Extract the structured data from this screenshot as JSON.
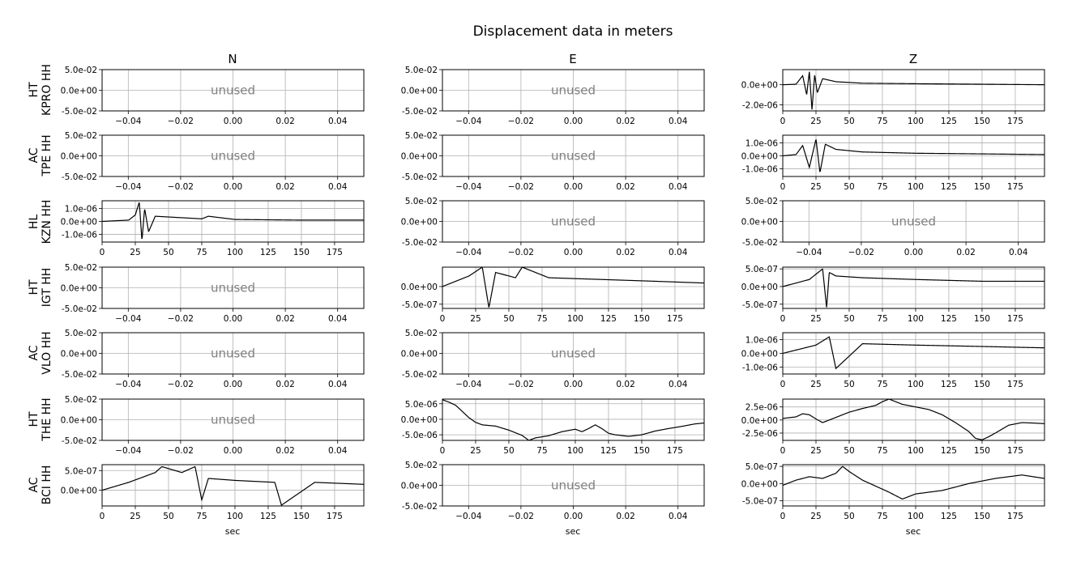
{
  "title": "Displacement data in meters",
  "columns": [
    "N",
    "E",
    "Z"
  ],
  "rows": [
    {
      "network": "HT",
      "station": "KPRO HH"
    },
    {
      "network": "AC",
      "station": "TPE HH"
    },
    {
      "network": "HL",
      "station": "KZN HH"
    },
    {
      "network": "HT",
      "station": "IGT HH"
    },
    {
      "network": "AC",
      "station": "VLO HH"
    },
    {
      "network": "HT",
      "station": "THE HH"
    },
    {
      "network": "AC",
      "station": "BCI HH"
    }
  ],
  "xlabel": "sec",
  "unused_label": "unused",
  "colors": {
    "trace": "#000000",
    "grid": "#b0b0b0",
    "unused_text": "#808080"
  },
  "chart_data": {
    "type": "line",
    "grid": true,
    "unused_panel": {
      "xlim": [
        -0.05,
        0.05
      ],
      "xticks": [
        -0.04,
        -0.02,
        0.0,
        0.02,
        0.04
      ],
      "xtick_labels": [
        "−0.04",
        "−0.02",
        "0.00",
        "0.02",
        "0.04"
      ],
      "ylim": [
        -0.05,
        0.05
      ],
      "yticks": [
        0.05,
        0.0,
        -0.05
      ],
      "ytick_labels": [
        "5.0e-02",
        "0.0e+00",
        "-5.0e-02"
      ]
    },
    "time_axis": {
      "xlim": [
        0,
        197
      ],
      "xticks": [
        0,
        25,
        50,
        75,
        100,
        125,
        150,
        175
      ],
      "xtick_labels": [
        "0",
        "25",
        "50",
        "75",
        "100",
        "125",
        "150",
        "175"
      ]
    },
    "panels": [
      {
        "row": 0,
        "col": 0,
        "used": false
      },
      {
        "row": 0,
        "col": 1,
        "used": false
      },
      {
        "row": 0,
        "col": 2,
        "used": true,
        "ylim": [
          -2.6e-06,
          1.5e-06
        ],
        "yticks": [
          0.0,
          -2e-06
        ],
        "ytick_labels": [
          "0.0e+00",
          "-2.0e-06"
        ],
        "x": [
          0,
          10,
          15,
          18,
          20,
          22,
          24,
          26,
          30,
          40,
          60,
          100,
          150,
          197
        ],
        "y": [
          0,
          5e-08,
          9e-07,
          -1e-06,
          1.3e-06,
          -2.5e-06,
          1e-06,
          -8e-07,
          6e-07,
          3e-07,
          1.5e-07,
          1e-07,
          5e-08,
          0
        ]
      },
      {
        "row": 1,
        "col": 0,
        "used": false
      },
      {
        "row": 1,
        "col": 1,
        "used": false
      },
      {
        "row": 1,
        "col": 2,
        "used": true,
        "ylim": [
          -1.6e-06,
          1.6e-06
        ],
        "yticks": [
          1e-06,
          0.0,
          -1e-06
        ],
        "ytick_labels": [
          "1.0e-06",
          "0.0e+00",
          "-1.0e-06"
        ],
        "x": [
          0,
          10,
          15,
          20,
          25,
          28,
          32,
          40,
          60,
          100,
          150,
          197
        ],
        "y": [
          0,
          1e-07,
          8e-07,
          -9e-07,
          1.3e-06,
          -1.3e-06,
          9e-07,
          5e-07,
          3e-07,
          2e-07,
          1.5e-07,
          1e-07
        ]
      },
      {
        "row": 2,
        "col": 0,
        "used": true,
        "ylim": [
          -1.6e-06,
          1.6e-06
        ],
        "yticks": [
          1e-06,
          0.0,
          -1e-06
        ],
        "ytick_labels": [
          "1.0e-06",
          "0.0e+00",
          "-1.0e-06"
        ],
        "x": [
          0,
          20,
          25,
          28,
          30,
          32,
          35,
          40,
          75,
          80,
          100,
          150,
          197
        ],
        "y": [
          0,
          1e-07,
          5e-07,
          1.5e-06,
          -1.5e-06,
          1e-06,
          -8e-07,
          4e-07,
          2e-07,
          4e-07,
          1.5e-07,
          1e-07,
          1e-07
        ]
      },
      {
        "row": 2,
        "col": 1,
        "used": false
      },
      {
        "row": 2,
        "col": 2,
        "used": false
      },
      {
        "row": 3,
        "col": 0,
        "used": false
      },
      {
        "row": 3,
        "col": 1,
        "used": true,
        "ylim": [
          -6.2e-07,
          5.5e-07
        ],
        "yticks": [
          0.0,
          -5e-07
        ],
        "ytick_labels": [
          "0.0e+00",
          "-5.0e-07"
        ],
        "x": [
          0,
          10,
          20,
          30,
          35,
          40,
          55,
          60,
          80,
          120,
          160,
          197
        ],
        "y": [
          0,
          1.5e-07,
          3e-07,
          5.5e-07,
          -6e-07,
          4e-07,
          2.5e-07,
          5.5e-07,
          2.5e-07,
          2e-07,
          1.5e-07,
          1e-07
        ]
      },
      {
        "row": 3,
        "col": 2,
        "used": true,
        "ylim": [
          -6.2e-07,
          5.5e-07
        ],
        "yticks": [
          5e-07,
          0.0,
          -5e-07
        ],
        "ytick_labels": [
          "5.0e-07",
          "0.0e+00",
          "-5.0e-07"
        ],
        "x": [
          0,
          20,
          30,
          33,
          35,
          40,
          60,
          100,
          150,
          197
        ],
        "y": [
          0,
          2e-07,
          5e-07,
          -6e-07,
          4e-07,
          3e-07,
          2.5e-07,
          2e-07,
          1.5e-07,
          1.5e-07
        ]
      },
      {
        "row": 4,
        "col": 0,
        "used": false
      },
      {
        "row": 4,
        "col": 1,
        "used": false
      },
      {
        "row": 4,
        "col": 2,
        "used": true,
        "ylim": [
          -1.5e-06,
          1.5e-06
        ],
        "yticks": [
          1e-06,
          0.0,
          -1e-06
        ],
        "ytick_labels": [
          "1.0e-06",
          "0.0e+00",
          "-1.0e-06"
        ],
        "x": [
          0,
          25,
          35,
          40,
          60,
          100,
          150,
          197
        ],
        "y": [
          0,
          6e-07,
          1.2e-06,
          -1.1e-06,
          7e-07,
          6e-07,
          5e-07,
          4e-07
        ]
      },
      {
        "row": 5,
        "col": 0,
        "used": false
      },
      {
        "row": 5,
        "col": 1,
        "used": true,
        "ylim": [
          -6.8e-06,
          6.5e-06
        ],
        "yticks": [
          5e-06,
          0.0,
          -5e-06
        ],
        "ytick_labels": [
          "5.0e-06",
          "0.0e+00",
          "-5.0e-06"
        ],
        "x": [
          0,
          5,
          10,
          15,
          20,
          25,
          30,
          40,
          50,
          60,
          65,
          70,
          80,
          90,
          100,
          105,
          110,
          115,
          120,
          125,
          130,
          140,
          150,
          160,
          170,
          180,
          190,
          197
        ],
        "y": [
          6.3e-06,
          5.5e-06,
          4.5e-06,
          2.5e-06,
          5e-07,
          -1e-06,
          -1.8e-06,
          -2.2e-06,
          -3.5e-06,
          -5.2e-06,
          -6.8e-06,
          -6e-06,
          -5.3e-06,
          -4e-06,
          -3.2e-06,
          -4e-06,
          -3e-06,
          -1.8e-06,
          -3e-06,
          -4.5e-06,
          -5e-06,
          -5.5e-06,
          -5e-06,
          -3.8e-06,
          -3e-06,
          -2.3e-06,
          -1.5e-06,
          -1.2e-06
        ]
      },
      {
        "row": 5,
        "col": 2,
        "used": true,
        "ylim": [
          -3.9e-06,
          4e-06
        ],
        "yticks": [
          2.5e-06,
          0.0,
          -2.5e-06
        ],
        "ytick_labels": [
          "2.5e-06",
          "0.0e+00",
          "-2.5e-06"
        ],
        "x": [
          0,
          10,
          15,
          20,
          25,
          30,
          40,
          50,
          60,
          70,
          75,
          80,
          90,
          100,
          110,
          120,
          130,
          140,
          145,
          150,
          155,
          160,
          170,
          180,
          190,
          197
        ],
        "y": [
          3e-07,
          6e-07,
          1.2e-06,
          1e-06,
          2e-07,
          -5e-07,
          5e-07,
          1.5e-06,
          2.2e-06,
          2.8e-06,
          3.5e-06,
          4e-06,
          3e-06,
          2.5e-06,
          2e-06,
          1e-06,
          -5e-07,
          -2.2e-06,
          -3.5e-06,
          -3.8e-06,
          -3.2e-06,
          -2.5e-06,
          -1e-06,
          -5e-07,
          -6e-07,
          -7e-07
        ]
      },
      {
        "row": 6,
        "col": 0,
        "used": true,
        "ylim": [
          -4e-07,
          6.5e-07
        ],
        "yticks": [
          5e-07,
          0.0
        ],
        "ytick_labels": [
          "5.0e-07",
          "0.0e+00"
        ],
        "x": [
          0,
          20,
          40,
          45,
          60,
          70,
          75,
          80,
          100,
          130,
          135,
          160,
          197
        ],
        "y": [
          0,
          2e-07,
          4.5e-07,
          6e-07,
          4.5e-07,
          6e-07,
          -2.5e-07,
          3e-07,
          2.5e-07,
          2e-07,
          -3.8e-07,
          2e-07,
          1.5e-07
        ]
      },
      {
        "row": 6,
        "col": 1,
        "used": false
      },
      {
        "row": 6,
        "col": 2,
        "used": true,
        "ylim": [
          -6.5e-07,
          5.5e-07
        ],
        "yticks": [
          5e-07,
          0.0,
          -5e-07
        ],
        "ytick_labels": [
          "5.0e-07",
          "0.0e+00",
          "-5.0e-07"
        ],
        "x": [
          0,
          10,
          20,
          30,
          40,
          45,
          50,
          60,
          80,
          90,
          100,
          120,
          140,
          160,
          180,
          197
        ],
        "y": [
          -5e-08,
          1e-07,
          2e-07,
          1.5e-07,
          3e-07,
          5e-07,
          3.5e-07,
          1e-07,
          -2.5e-07,
          -4.5e-07,
          -3e-07,
          -2e-07,
          0.0,
          1.5e-07,
          2.5e-07,
          1.5e-07
        ]
      }
    ]
  }
}
